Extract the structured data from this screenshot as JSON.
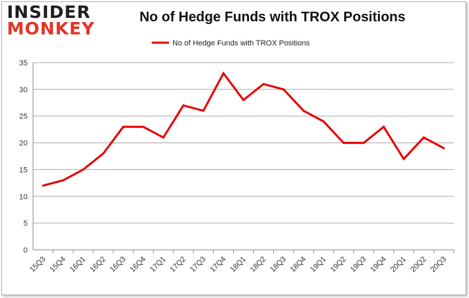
{
  "branding": {
    "logo_top": "INSIDER",
    "logo_bottom": "MONKEY"
  },
  "chart_data": {
    "type": "line",
    "title": "No of Hedge Funds with TROX Positions",
    "xlabel": "",
    "ylabel": "",
    "categories": [
      "15Q3",
      "15Q4",
      "16Q1",
      "16Q2",
      "16Q3",
      "16Q4",
      "17Q1",
      "17Q2",
      "17Q3",
      "17Q4",
      "18Q1",
      "18Q2",
      "18Q3",
      "18Q4",
      "19Q1",
      "19Q2",
      "19Q3",
      "19Q4",
      "20Q1",
      "20Q2",
      "20Q3"
    ],
    "series": [
      {
        "name": "No of Hedge Funds with TROX Positions",
        "color": "#e60000",
        "values": [
          12,
          13,
          15,
          18,
          23,
          23,
          21,
          27,
          26,
          33,
          28,
          31,
          30,
          26,
          24,
          20,
          20,
          23,
          17,
          21,
          19
        ]
      }
    ],
    "ylim": [
      0,
      35
    ],
    "yticks": [
      0,
      5,
      10,
      15,
      20,
      25,
      30,
      35
    ],
    "grid": true,
    "legend_position": "top-center"
  }
}
